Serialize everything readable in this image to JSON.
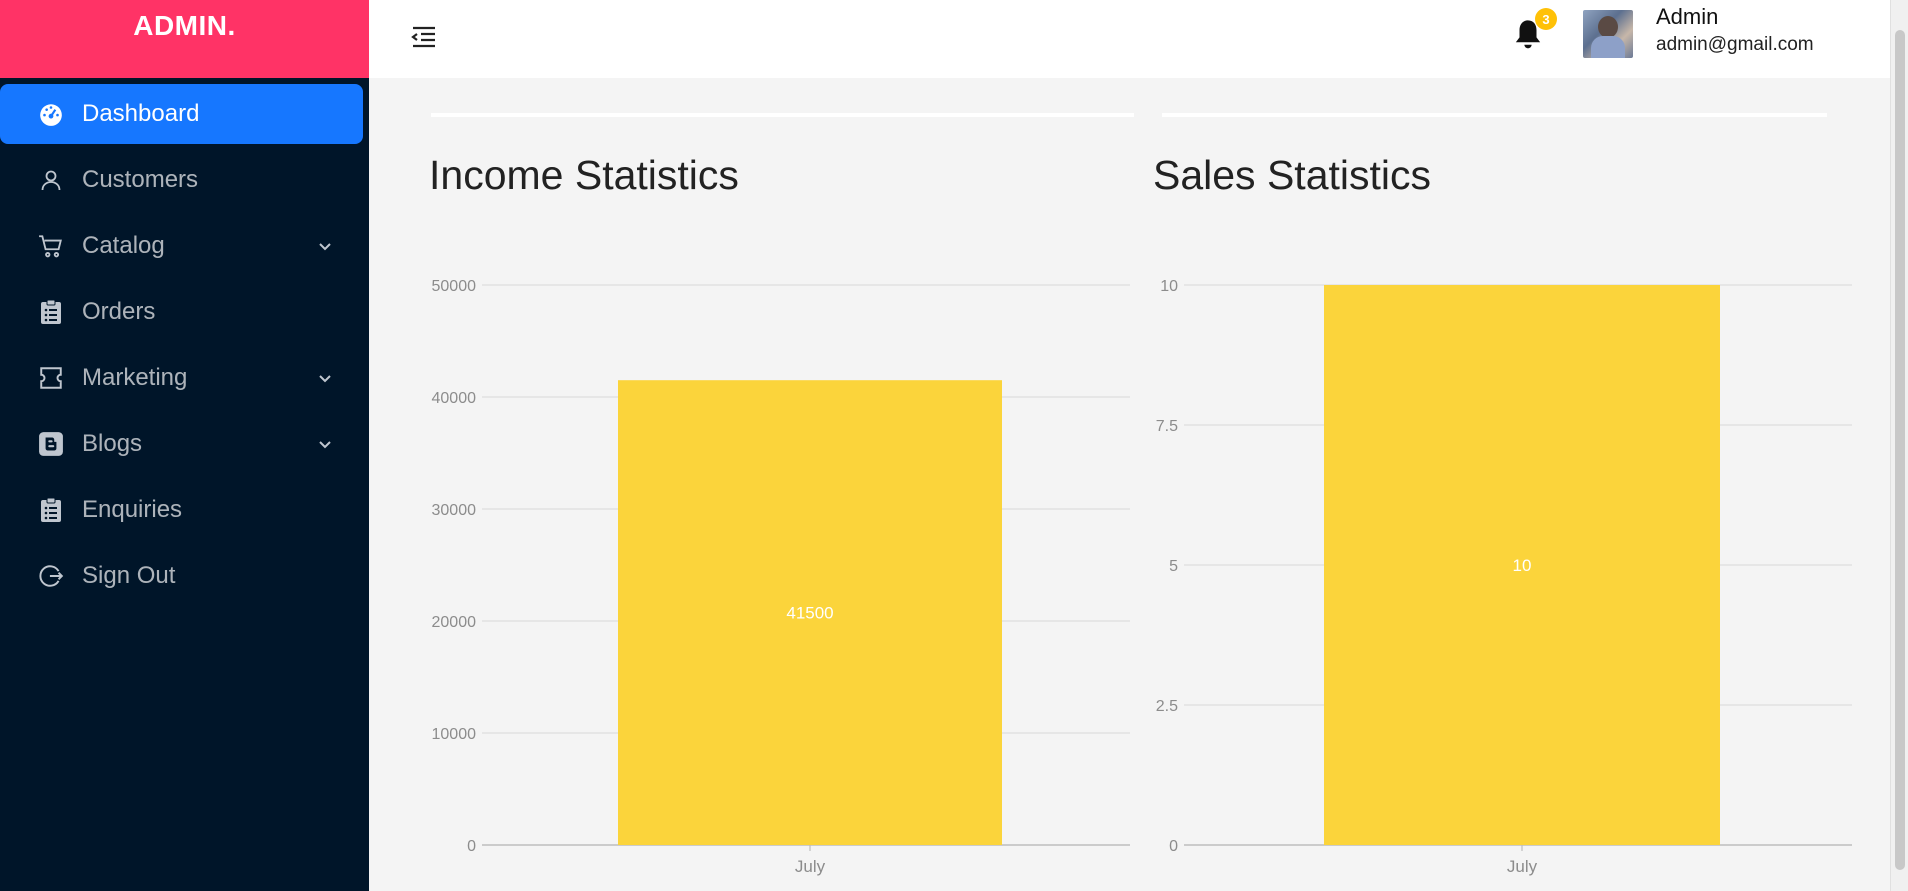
{
  "brand": "ADMIN.",
  "sidebar": {
    "items": [
      {
        "label": "Dashboard",
        "icon": "dashboard-icon",
        "active": true
      },
      {
        "label": "Customers",
        "icon": "user-icon"
      },
      {
        "label": "Catalog",
        "icon": "cart-icon",
        "has_submenu": true
      },
      {
        "label": "Orders",
        "icon": "clipboard-icon"
      },
      {
        "label": "Marketing",
        "icon": "ticket-icon",
        "has_submenu": true
      },
      {
        "label": "Blogs",
        "icon": "blogger-icon",
        "has_submenu": true
      },
      {
        "label": "Enquiries",
        "icon": "clipboard-icon"
      },
      {
        "label": "Sign Out",
        "icon": "sign-out-icon"
      }
    ]
  },
  "header": {
    "notification_count": "3",
    "user_name": "Admin",
    "user_email": "admin@gmail.com"
  },
  "colors": {
    "brand": "#ff3366",
    "sidebar_bg": "#001529",
    "active_item": "#1677ff",
    "bar": "#fbd43b",
    "badge": "#ffc107"
  },
  "chart_data": [
    {
      "type": "bar",
      "title": "Income Statistics",
      "categories": [
        "July"
      ],
      "values": [
        41500
      ],
      "ylim": [
        0,
        50000
      ],
      "yticks": [
        "0",
        "10000",
        "20000",
        "30000",
        "40000",
        "50000"
      ],
      "data_labels": [
        "41500"
      ],
      "grid": true
    },
    {
      "type": "bar",
      "title": "Sales Statistics",
      "categories": [
        "July"
      ],
      "values": [
        10
      ],
      "ylim": [
        0,
        10
      ],
      "yticks": [
        "0",
        "2.5",
        "5",
        "7.5",
        "10"
      ],
      "data_labels": [
        "10"
      ],
      "grid": true
    }
  ]
}
